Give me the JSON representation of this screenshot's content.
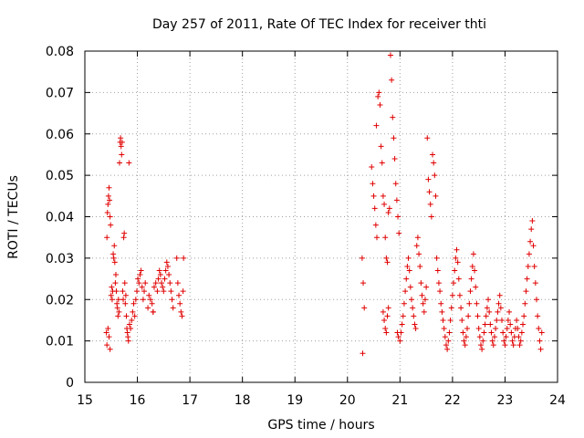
{
  "chart_data": {
    "type": "scatter",
    "title": "Day 257 of 2011, Rate Of TEC Index for receiver thti",
    "xlabel": "GPS time / hours",
    "ylabel": "ROTI / TECUs",
    "xlim": [
      15,
      24
    ],
    "ylim": [
      0,
      0.08
    ],
    "x_ticks": [
      "15",
      "16",
      "17",
      "18",
      "19",
      "20",
      "21",
      "22",
      "23",
      "24"
    ],
    "y_ticks": [
      "0",
      "0.01",
      "0.02",
      "0.03",
      "0.04",
      "0.05",
      "0.06",
      "0.07",
      "0.08"
    ],
    "grid": true,
    "marker": "+",
    "color": "#e00000",
    "series": [
      {
        "name": "ROTI",
        "points": [
          [
            15.42,
            0.035
          ],
          [
            15.43,
            0.041
          ],
          [
            15.44,
            0.043
          ],
          [
            15.45,
            0.045
          ],
          [
            15.46,
            0.047
          ],
          [
            15.47,
            0.044
          ],
          [
            15.48,
            0.04
          ],
          [
            15.49,
            0.038
          ],
          [
            15.41,
            0.012
          ],
          [
            15.42,
            0.009
          ],
          [
            15.44,
            0.013
          ],
          [
            15.46,
            0.011
          ],
          [
            15.48,
            0.008
          ],
          [
            15.5,
            0.021
          ],
          [
            15.51,
            0.023
          ],
          [
            15.52,
            0.02
          ],
          [
            15.53,
            0.022
          ],
          [
            15.54,
            0.031
          ],
          [
            15.55,
            0.03
          ],
          [
            15.56,
            0.033
          ],
          [
            15.57,
            0.029
          ],
          [
            15.58,
            0.024
          ],
          [
            15.59,
            0.026
          ],
          [
            15.6,
            0.022
          ],
          [
            15.61,
            0.019
          ],
          [
            15.62,
            0.018
          ],
          [
            15.63,
            0.016
          ],
          [
            15.64,
            0.02
          ],
          [
            15.65,
            0.017
          ],
          [
            15.66,
            0.053
          ],
          [
            15.67,
            0.058
          ],
          [
            15.68,
            0.059
          ],
          [
            15.69,
            0.057
          ],
          [
            15.7,
            0.055
          ],
          [
            15.71,
            0.058
          ],
          [
            15.72,
            0.022
          ],
          [
            15.73,
            0.02
          ],
          [
            15.74,
            0.035
          ],
          [
            15.75,
            0.036
          ],
          [
            15.76,
            0.024
          ],
          [
            15.77,
            0.019
          ],
          [
            15.78,
            0.021
          ],
          [
            15.79,
            0.016
          ],
          [
            15.8,
            0.013
          ],
          [
            15.81,
            0.012
          ],
          [
            15.82,
            0.011
          ],
          [
            15.83,
            0.01
          ],
          [
            15.84,
            0.053
          ],
          [
            15.85,
            0.014
          ],
          [
            15.87,
            0.013
          ],
          [
            15.89,
            0.015
          ],
          [
            15.91,
            0.017
          ],
          [
            15.93,
            0.019
          ],
          [
            15.95,
            0.016
          ],
          [
            15.97,
            0.02
          ],
          [
            15.99,
            0.022
          ],
          [
            16.01,
            0.025
          ],
          [
            16.03,
            0.024
          ],
          [
            16.05,
            0.026
          ],
          [
            16.07,
            0.027
          ],
          [
            16.09,
            0.023
          ],
          [
            16.11,
            0.02
          ],
          [
            16.13,
            0.022
          ],
          [
            16.15,
            0.024
          ],
          [
            16.2,
            0.018
          ],
          [
            16.22,
            0.021
          ],
          [
            16.25,
            0.02
          ],
          [
            16.28,
            0.019
          ],
          [
            16.3,
            0.017
          ],
          [
            16.32,
            0.023
          ],
          [
            16.35,
            0.024
          ],
          [
            16.38,
            0.022
          ],
          [
            16.4,
            0.025
          ],
          [
            16.42,
            0.027
          ],
          [
            16.44,
            0.026
          ],
          [
            16.46,
            0.024
          ],
          [
            16.48,
            0.023
          ],
          [
            16.5,
            0.022
          ],
          [
            16.52,
            0.025
          ],
          [
            16.54,
            0.027
          ],
          [
            16.56,
            0.029
          ],
          [
            16.58,
            0.028
          ],
          [
            16.6,
            0.026
          ],
          [
            16.62,
            0.024
          ],
          [
            16.64,
            0.022
          ],
          [
            16.66,
            0.02
          ],
          [
            16.68,
            0.018
          ],
          [
            16.3,
            0.017
          ],
          [
            16.75,
            0.03
          ],
          [
            16.77,
            0.024
          ],
          [
            16.79,
            0.021
          ],
          [
            16.81,
            0.019
          ],
          [
            16.83,
            0.017
          ],
          [
            16.85,
            0.016
          ],
          [
            16.87,
            0.022
          ],
          [
            16.88,
            0.03
          ],
          [
            20.28,
            0.03
          ],
          [
            20.3,
            0.024
          ],
          [
            20.32,
            0.018
          ],
          [
            20.29,
            0.007
          ],
          [
            20.46,
            0.052
          ],
          [
            20.48,
            0.048
          ],
          [
            20.5,
            0.045
          ],
          [
            20.52,
            0.042
          ],
          [
            20.54,
            0.038
          ],
          [
            20.56,
            0.035
          ],
          [
            20.58,
            0.069
          ],
          [
            20.6,
            0.07
          ],
          [
            20.62,
            0.067
          ],
          [
            20.64,
            0.057
          ],
          [
            20.66,
            0.053
          ],
          [
            20.55,
            0.062
          ],
          [
            20.68,
            0.045
          ],
          [
            20.7,
            0.043
          ],
          [
            20.72,
            0.035
          ],
          [
            20.74,
            0.03
          ],
          [
            20.76,
            0.029
          ],
          [
            20.78,
            0.041
          ],
          [
            20.8,
            0.042
          ],
          [
            20.82,
            0.079
          ],
          [
            20.84,
            0.073
          ],
          [
            20.86,
            0.064
          ],
          [
            20.88,
            0.059
          ],
          [
            20.9,
            0.054
          ],
          [
            20.92,
            0.048
          ],
          [
            20.94,
            0.044
          ],
          [
            20.96,
            0.04
          ],
          [
            20.98,
            0.036
          ],
          [
            20.68,
            0.017
          ],
          [
            20.7,
            0.015
          ],
          [
            20.72,
            0.013
          ],
          [
            20.74,
            0.012
          ],
          [
            20.76,
            0.016
          ],
          [
            20.78,
            0.018
          ],
          [
            20.95,
            0.012
          ],
          [
            20.97,
            0.011
          ],
          [
            21.0,
            0.01
          ],
          [
            21.02,
            0.012
          ],
          [
            21.04,
            0.014
          ],
          [
            21.06,
            0.016
          ],
          [
            21.08,
            0.019
          ],
          [
            21.1,
            0.022
          ],
          [
            21.12,
            0.025
          ],
          [
            21.14,
            0.028
          ],
          [
            21.16,
            0.03
          ],
          [
            21.18,
            0.027
          ],
          [
            21.2,
            0.023
          ],
          [
            21.22,
            0.02
          ],
          [
            21.24,
            0.018
          ],
          [
            21.26,
            0.016
          ],
          [
            21.28,
            0.014
          ],
          [
            21.3,
            0.013
          ],
          [
            21.32,
            0.033
          ],
          [
            21.34,
            0.035
          ],
          [
            21.36,
            0.031
          ],
          [
            21.38,
            0.028
          ],
          [
            21.4,
            0.024
          ],
          [
            21.42,
            0.021
          ],
          [
            21.44,
            0.019
          ],
          [
            21.46,
            0.017
          ],
          [
            21.48,
            0.02
          ],
          [
            21.5,
            0.023
          ],
          [
            21.52,
            0.059
          ],
          [
            21.54,
            0.049
          ],
          [
            21.56,
            0.046
          ],
          [
            21.58,
            0.043
          ],
          [
            21.6,
            0.04
          ],
          [
            21.62,
            0.055
          ],
          [
            21.64,
            0.053
          ],
          [
            21.66,
            0.05
          ],
          [
            21.68,
            0.045
          ],
          [
            21.7,
            0.03
          ],
          [
            21.72,
            0.027
          ],
          [
            21.74,
            0.024
          ],
          [
            21.76,
            0.022
          ],
          [
            21.78,
            0.019
          ],
          [
            21.8,
            0.017
          ],
          [
            21.82,
            0.015
          ],
          [
            21.84,
            0.013
          ],
          [
            21.86,
            0.011
          ],
          [
            21.88,
            0.009
          ],
          [
            21.9,
            0.008
          ],
          [
            21.92,
            0.01
          ],
          [
            21.94,
            0.012
          ],
          [
            21.96,
            0.015
          ],
          [
            21.98,
            0.018
          ],
          [
            22.0,
            0.021
          ],
          [
            22.02,
            0.024
          ],
          [
            22.04,
            0.027
          ],
          [
            22.06,
            0.03
          ],
          [
            22.08,
            0.032
          ],
          [
            22.1,
            0.029
          ],
          [
            22.12,
            0.025
          ],
          [
            22.14,
            0.021
          ],
          [
            22.16,
            0.018
          ],
          [
            22.18,
            0.015
          ],
          [
            22.2,
            0.012
          ],
          [
            22.22,
            0.01
          ],
          [
            22.24,
            0.009
          ],
          [
            22.26,
            0.011
          ],
          [
            22.28,
            0.013
          ],
          [
            22.3,
            0.016
          ],
          [
            22.32,
            0.019
          ],
          [
            22.34,
            0.022
          ],
          [
            22.36,
            0.025
          ],
          [
            22.38,
            0.028
          ],
          [
            22.4,
            0.031
          ],
          [
            22.42,
            0.027
          ],
          [
            22.44,
            0.023
          ],
          [
            22.46,
            0.019
          ],
          [
            22.48,
            0.016
          ],
          [
            22.5,
            0.013
          ],
          [
            22.52,
            0.011
          ],
          [
            22.54,
            0.009
          ],
          [
            22.56,
            0.008
          ],
          [
            22.58,
            0.01
          ],
          [
            22.6,
            0.012
          ],
          [
            22.62,
            0.014
          ],
          [
            22.64,
            0.016
          ],
          [
            22.66,
            0.018
          ],
          [
            22.68,
            0.02
          ],
          [
            22.7,
            0.017
          ],
          [
            22.72,
            0.014
          ],
          [
            22.74,
            0.012
          ],
          [
            22.76,
            0.01
          ],
          [
            22.78,
            0.009
          ],
          [
            22.8,
            0.011
          ],
          [
            22.82,
            0.013
          ],
          [
            22.84,
            0.015
          ],
          [
            22.86,
            0.017
          ],
          [
            22.88,
            0.019
          ],
          [
            22.9,
            0.021
          ],
          [
            22.92,
            0.018
          ],
          [
            22.94,
            0.015
          ],
          [
            22.96,
            0.012
          ],
          [
            22.98,
            0.01
          ],
          [
            23.0,
            0.009
          ],
          [
            23.02,
            0.011
          ],
          [
            23.04,
            0.013
          ],
          [
            23.06,
            0.015
          ],
          [
            23.08,
            0.017
          ],
          [
            23.1,
            0.014
          ],
          [
            23.12,
            0.012
          ],
          [
            23.14,
            0.01
          ],
          [
            23.16,
            0.009
          ],
          [
            23.18,
            0.011
          ],
          [
            23.2,
            0.013
          ],
          [
            23.22,
            0.015
          ],
          [
            23.24,
            0.013
          ],
          [
            23.26,
            0.011
          ],
          [
            23.28,
            0.009
          ],
          [
            23.3,
            0.01
          ],
          [
            23.32,
            0.012
          ],
          [
            23.34,
            0.014
          ],
          [
            23.36,
            0.016
          ],
          [
            23.38,
            0.019
          ],
          [
            23.4,
            0.022
          ],
          [
            23.42,
            0.025
          ],
          [
            23.44,
            0.028
          ],
          [
            23.46,
            0.031
          ],
          [
            23.48,
            0.034
          ],
          [
            23.5,
            0.037
          ],
          [
            23.52,
            0.039
          ],
          [
            23.54,
            0.033
          ],
          [
            23.56,
            0.028
          ],
          [
            23.58,
            0.024
          ],
          [
            23.6,
            0.02
          ],
          [
            23.62,
            0.016
          ],
          [
            23.64,
            0.013
          ],
          [
            23.66,
            0.01
          ],
          [
            23.68,
            0.008
          ],
          [
            23.7,
            0.012
          ]
        ]
      }
    ]
  }
}
